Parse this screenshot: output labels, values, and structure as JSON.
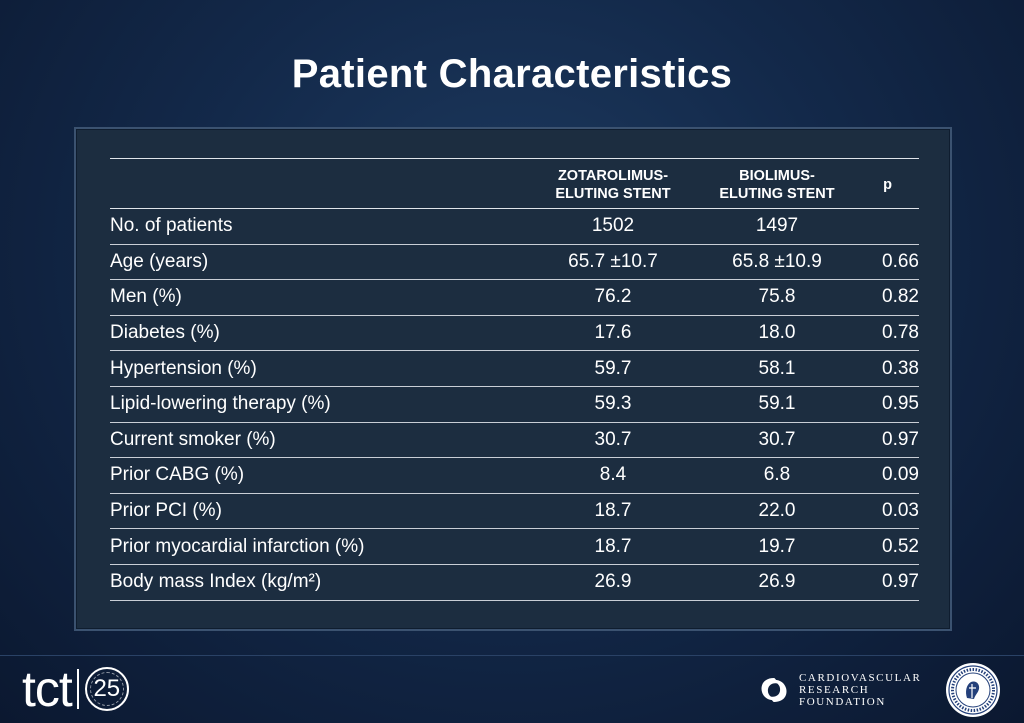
{
  "slide": {
    "title": "Patient Characteristics"
  },
  "table": {
    "headers": {
      "zotarolimus_line1": "ZOTAROLIMUS-",
      "zotarolimus_line2": "ELUTING STENT",
      "biolimus_line1": "BIOLIMUS-",
      "biolimus_line2": "ELUTING STENT",
      "p": "p"
    },
    "rows": [
      {
        "label": "No. of patients",
        "zotarolimus": "1502",
        "biolimus": "1497",
        "p": ""
      },
      {
        "label": "Age (years)",
        "zotarolimus": "65.7 ±10.7",
        "biolimus": "65.8 ±10.9",
        "p": "0.66"
      },
      {
        "label": "Men (%)",
        "zotarolimus": "76.2",
        "biolimus": "75.8",
        "p": "0.82"
      },
      {
        "label": "Diabetes (%)",
        "zotarolimus": "17.6",
        "biolimus": "18.0",
        "p": "0.78"
      },
      {
        "label": "Hypertension (%)",
        "zotarolimus": "59.7",
        "biolimus": "58.1",
        "p": "0.38"
      },
      {
        "label": "Lipid-lowering therapy (%)",
        "zotarolimus": "59.3",
        "biolimus": "59.1",
        "p": "0.95"
      },
      {
        "label": "Current smoker (%)",
        "zotarolimus": "30.7",
        "biolimus": "30.7",
        "p": "0.97"
      },
      {
        "label": "Prior CABG (%)",
        "zotarolimus": "8.4",
        "biolimus": "6.8",
        "p": "0.09"
      },
      {
        "label": "Prior PCI (%)",
        "zotarolimus": "18.7",
        "biolimus": "22.0",
        "p": "0.03"
      },
      {
        "label": "Prior myocardial infarction (%)",
        "zotarolimus": "18.7",
        "biolimus": "19.7",
        "p": "0.52"
      },
      {
        "label": "Body mass Index (kg/m²)",
        "zotarolimus": "26.9",
        "biolimus": "26.9",
        "p": "0.97"
      }
    ]
  },
  "footer": {
    "tct_logo_text": "tct",
    "tct_logo_number": "25",
    "crf_line1": "CARDIOVASCULAR",
    "crf_line2": "RESEARCH",
    "crf_line3": "FOUNDATION",
    "crf_icon": "crf-swirl-icon",
    "seal_icon": "college-seal-icon"
  },
  "colors": {
    "background": "#13294a",
    "panel": "#1c2d40",
    "text": "#ffffff"
  }
}
